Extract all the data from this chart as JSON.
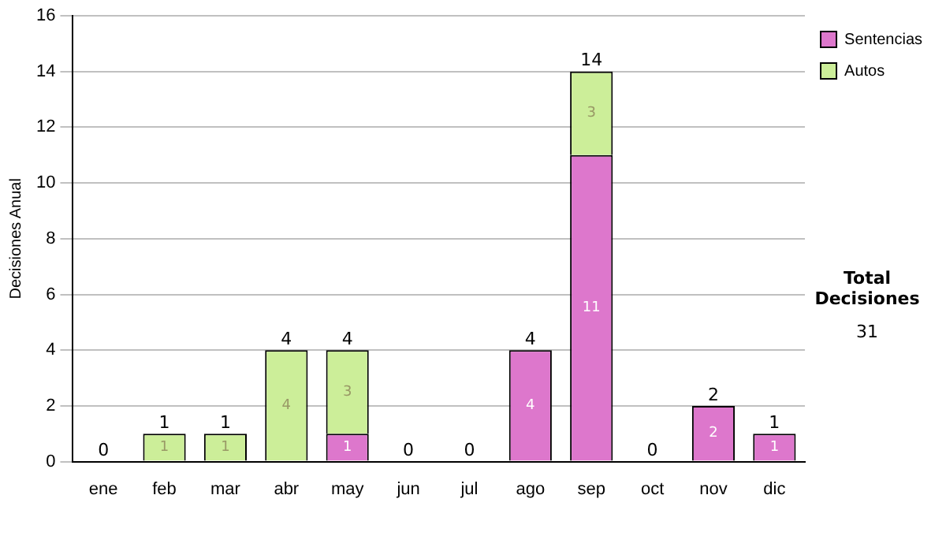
{
  "chart_data": {
    "type": "bar",
    "stacked": true,
    "ylabel": "Decisiones Anual",
    "categories": [
      "ene",
      "feb",
      "mar",
      "abr",
      "may",
      "jun",
      "jul",
      "ago",
      "sep",
      "oct",
      "nov",
      "dic"
    ],
    "series": [
      {
        "name": "Sentencias",
        "color": "#dd77cc",
        "values": [
          0,
          0,
          0,
          0,
          1,
          0,
          0,
          4,
          11,
          0,
          2,
          1
        ],
        "value_labels": [
          null,
          null,
          null,
          null,
          "1",
          null,
          null,
          "4",
          "11",
          null,
          "2",
          "1"
        ]
      },
      {
        "name": "Autos",
        "color": "#ccee99",
        "values": [
          0,
          1,
          1,
          4,
          3,
          0,
          0,
          0,
          3,
          0,
          0,
          0
        ],
        "value_labels": [
          null,
          "1",
          "1",
          "4",
          "3",
          null,
          null,
          null,
          "3",
          null,
          null,
          null
        ]
      }
    ],
    "totals": [
      "0",
      "1",
      "1",
      "4",
      "4",
      "0",
      "0",
      "4",
      "14",
      "0",
      "2",
      "1"
    ],
    "ylim": [
      0,
      16
    ],
    "yticks": [
      0,
      2,
      4,
      6,
      8,
      10,
      12,
      14,
      16
    ],
    "grid": "y",
    "legend": "right",
    "annotations": [
      "Total Decisiones",
      "31"
    ]
  }
}
